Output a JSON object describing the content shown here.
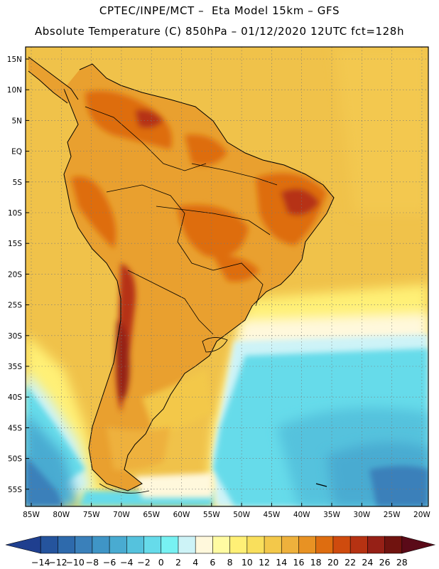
{
  "title": {
    "line1": "CPTEC/INPE/MCT –  Eta Model 15km – GFS",
    "line2": "Absolute Temperature (C) 850hPa – 01/12/2020 12UTC fct=128h"
  },
  "map": {
    "lat_labels": [
      "15N",
      "10N",
      "5N",
      "EQ",
      "5S",
      "10S",
      "15S",
      "20S",
      "25S",
      "30S",
      "35S",
      "40S",
      "45S",
      "50S",
      "55S"
    ],
    "lon_labels": [
      "85W",
      "80W",
      "75W",
      "70W",
      "65W",
      "60W",
      "55W",
      "50W",
      "45W",
      "40W",
      "35W",
      "30W",
      "25W",
      "20W"
    ],
    "grid": "dotted"
  },
  "colorbar": {
    "labels": [
      "-14",
      "-12",
      "-10",
      "-8",
      "-6",
      "-4",
      "-2",
      "0",
      "2",
      "4",
      "6",
      "8",
      "10",
      "12",
      "14",
      "16",
      "18",
      "20",
      "22",
      "24",
      "26",
      "28"
    ],
    "colors": [
      "#1f3f8f",
      "#25549d",
      "#2e6aac",
      "#3a80ba",
      "#3f95c6",
      "#49abd1",
      "#55c2dd",
      "#66dbea",
      "#77f1f2",
      "#cdf3f7",
      "#fff8dc",
      "#fffba2",
      "#fff076",
      "#f9df5c",
      "#f3c84a",
      "#eeb13c",
      "#e89223",
      "#de6d10",
      "#cf4b0e",
      "#b63212",
      "#962016",
      "#70130f",
      "#5a0a18"
    ]
  },
  "colors": {
    "land": "#eca332",
    "ocean_warm": "#f1c54b",
    "ocean_cool": "#62dae8",
    "ocean_cold": "#3a8cbf"
  }
}
